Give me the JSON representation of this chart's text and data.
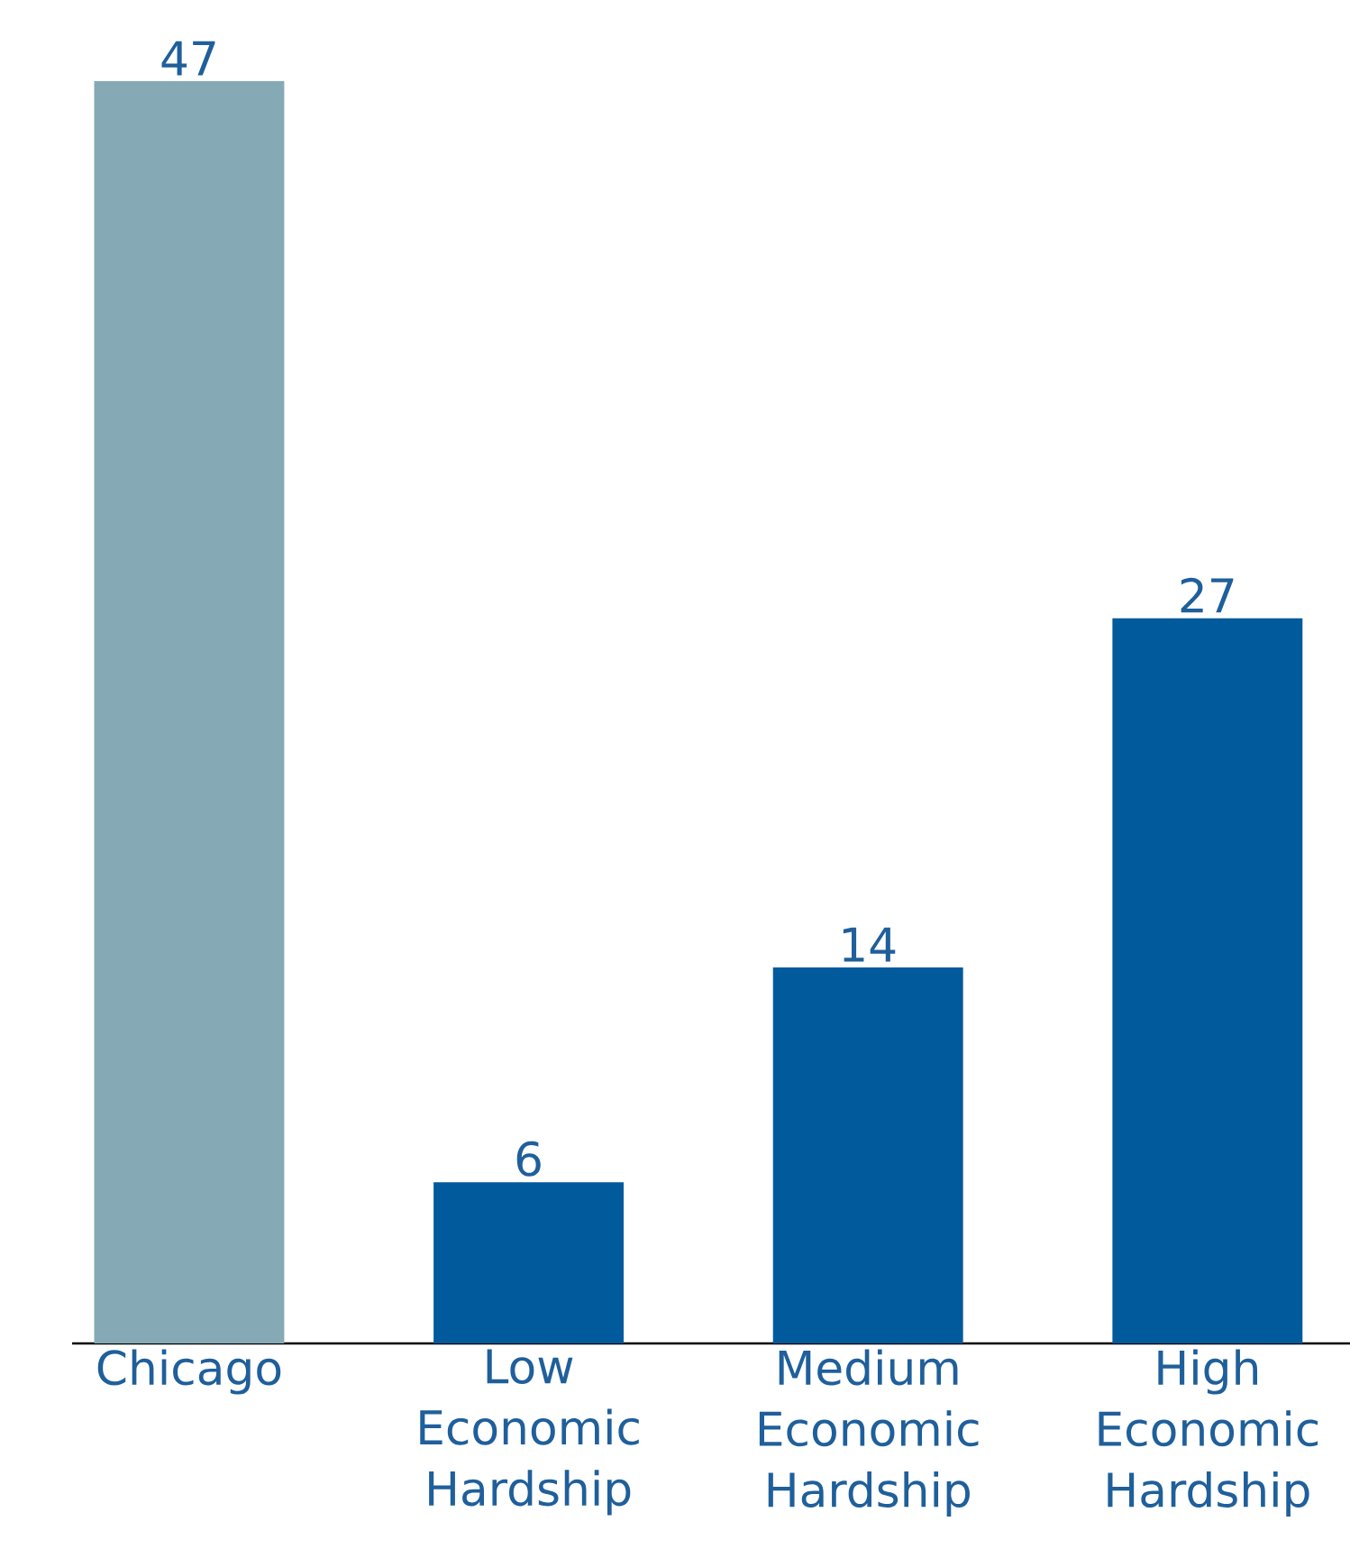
{
  "chart_data": {
    "type": "bar",
    "categories": [
      "Chicago",
      "Low Economic Hardship",
      "Medium Economic Hardship",
      "High Economic Hardship"
    ],
    "values": [
      47,
      6,
      14,
      27
    ],
    "colors": [
      "#85aab5",
      "#005a9c",
      "#005a9c",
      "#005a9c"
    ],
    "data_labels": true
  }
}
